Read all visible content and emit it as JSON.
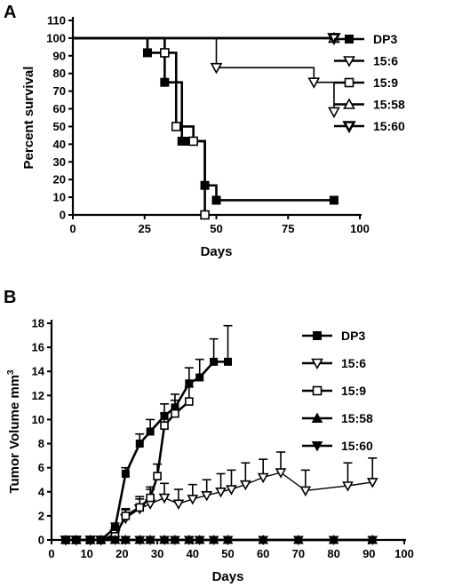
{
  "chart_data": [
    {
      "panel": "A",
      "type": "line",
      "step": true,
      "xlabel": "Days",
      "ylabel": "Percent survival",
      "xlim": [
        0,
        100
      ],
      "ylim": [
        0,
        110
      ],
      "xticks": [
        0,
        25,
        50,
        75,
        100
      ],
      "yticks": [
        0,
        10,
        20,
        30,
        40,
        50,
        60,
        70,
        80,
        90,
        100,
        110
      ],
      "legend_position": "right",
      "series": [
        {
          "name": "DP3",
          "marker": "square-filled",
          "x": [
            0,
            26,
            32,
            38,
            40,
            46,
            50,
            91
          ],
          "y": [
            100,
            91.7,
            75,
            41.7,
            41.7,
            16.7,
            8.3,
            8.3
          ],
          "markers_x": [
            26,
            32,
            38,
            40,
            46,
            50,
            91
          ],
          "markers_y": [
            91.7,
            75,
            41.7,
            41.7,
            16.7,
            8.3,
            8.3
          ]
        },
        {
          "name": "15:6",
          "marker": "triangle-down-open",
          "x": [
            0,
            50,
            84,
            91
          ],
          "y": [
            100,
            83.3,
            75,
            58.3
          ],
          "markers_x": [
            50,
            84,
            91
          ],
          "markers_y": [
            83.3,
            75,
            58.3
          ]
        },
        {
          "name": "15:9",
          "marker": "square-open",
          "x": [
            0,
            32,
            36,
            42,
            46
          ],
          "y": [
            100,
            91.7,
            50,
            41.7,
            0
          ],
          "markers_x": [
            32,
            36,
            42,
            46
          ],
          "markers_y": [
            91.7,
            50,
            41.7,
            0
          ]
        },
        {
          "name": "15:58",
          "marker": "triangle-up-open",
          "x": [
            0,
            91
          ],
          "y": [
            100,
            100
          ],
          "markers_x": [
            91
          ],
          "markers_y": [
            100
          ]
        },
        {
          "name": "15:60",
          "marker": "triangle-down-open-bold",
          "x": [
            0,
            91
          ],
          "y": [
            100,
            100
          ],
          "markers_x": [
            91
          ],
          "markers_y": [
            100
          ]
        }
      ]
    },
    {
      "panel": "B",
      "type": "line",
      "step": false,
      "xlabel": "Days",
      "ylabel": "Tumor Volume mm",
      "ylabel_sup": "3",
      "xlim": [
        0,
        100
      ],
      "ylim": [
        0,
        18
      ],
      "xticks": [
        0,
        10,
        20,
        30,
        40,
        50,
        60,
        70,
        80,
        90,
        100
      ],
      "yticks": [
        0,
        2,
        4,
        6,
        8,
        10,
        12,
        14,
        16,
        18
      ],
      "legend_position": "right",
      "series": [
        {
          "name": "DP3",
          "marker": "square-filled",
          "x": [
            4,
            7,
            11,
            14,
            18,
            21,
            25,
            28,
            32,
            35,
            39,
            42,
            46,
            50
          ],
          "y": [
            0,
            0,
            0,
            0,
            1,
            5.5,
            8,
            9,
            10.3,
            11,
            13,
            13.5,
            14.8,
            14.8
          ],
          "err": [
            0,
            0,
            0,
            0,
            0.4,
            0.5,
            0.8,
            1.0,
            1.0,
            1.1,
            1.3,
            1.5,
            1.9,
            3.0
          ]
        },
        {
          "name": "15:6",
          "marker": "triangle-down-open",
          "x": [
            4,
            7,
            11,
            14,
            18,
            21,
            25,
            28,
            32,
            36,
            40,
            44,
            48,
            51,
            55,
            60,
            65,
            72,
            84,
            91
          ],
          "y": [
            0,
            0,
            0,
            0,
            0.5,
            1.8,
            2.6,
            3,
            3.5,
            3,
            3.4,
            3.7,
            4,
            4.2,
            4.6,
            5.2,
            5.6,
            4.1,
            4.5,
            4.8
          ],
          "err": [
            0,
            0,
            0,
            0,
            0.5,
            0.8,
            1.0,
            1.2,
            1.2,
            1.2,
            1.2,
            1.3,
            1.5,
            1.6,
            1.8,
            1.5,
            1.7,
            1.7,
            1.9,
            2.0
          ]
        },
        {
          "name": "15:9",
          "marker": "square-open",
          "x": [
            4,
            7,
            11,
            14,
            18,
            21,
            25,
            28,
            30,
            32,
            35,
            39
          ],
          "y": [
            0,
            0,
            0,
            0,
            0.3,
            2,
            2.7,
            3.5,
            5.3,
            9.5,
            10.5,
            11.5
          ],
          "err": [
            0,
            0,
            0,
            0,
            0.3,
            0.5,
            0.7,
            0.9,
            1.0,
            1.0,
            1.1,
            1.2
          ]
        },
        {
          "name": "15:58",
          "marker": "triangle-up-filled",
          "x": [
            4,
            7,
            11,
            14,
            18,
            21,
            25,
            28,
            32,
            35,
            39,
            42,
            46,
            50,
            60,
            70,
            80,
            91
          ],
          "y": [
            0,
            0,
            0,
            0,
            0,
            0,
            0,
            0,
            0,
            0,
            0,
            0,
            0,
            0,
            0,
            0,
            0,
            0
          ]
        },
        {
          "name": "15:60",
          "marker": "triangle-down-filled",
          "x": [
            4,
            7,
            11,
            14,
            18,
            21,
            25,
            28,
            32,
            35,
            39,
            42,
            46,
            50,
            60,
            70,
            80,
            91
          ],
          "y": [
            0,
            0,
            0,
            0,
            0,
            0,
            0,
            0,
            0,
            0,
            0,
            0,
            0,
            0,
            0,
            0,
            0,
            0
          ]
        }
      ]
    }
  ]
}
